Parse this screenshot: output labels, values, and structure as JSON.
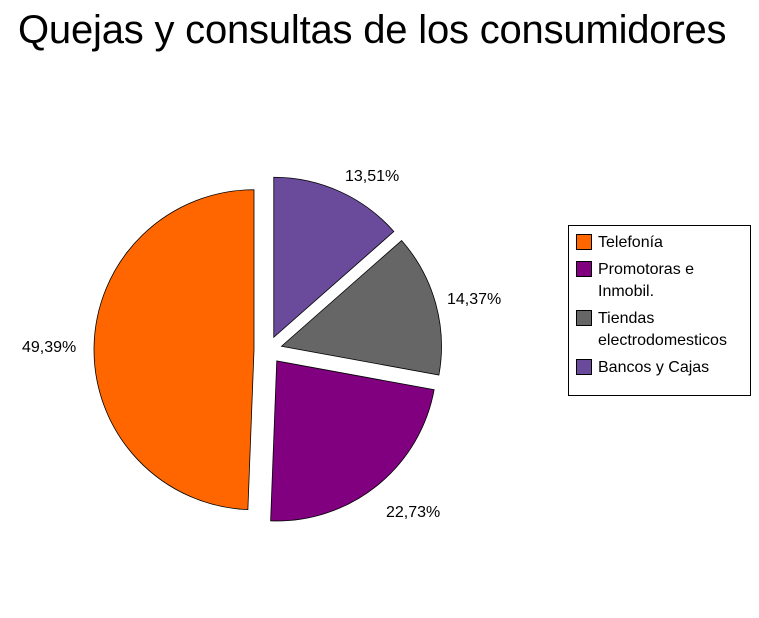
{
  "chart_data": {
    "type": "pie",
    "title": "Quejas y consultas de los consumidores",
    "categories": [
      "Telefonía",
      "Promotoras e Inmobil.",
      "Tiendas electrodomesticos",
      "Bancos y Cajas"
    ],
    "values": [
      49.39,
      22.73,
      14.37,
      13.51
    ],
    "value_labels": [
      "49,39%",
      "22,73%",
      "14,37%",
      "13,51%"
    ],
    "colors": [
      "#ff6600",
      "#800080",
      "#666666",
      "#6a4a9a"
    ],
    "legend_position": "right",
    "exploded": true
  },
  "legend": {
    "items": [
      {
        "label": "Telefonía",
        "color": "#ff6600"
      },
      {
        "label": "Promotoras e\nInmobil.",
        "color": "#800080"
      },
      {
        "label": "Tiendas\nelectrodomesticos",
        "color": "#666666"
      },
      {
        "label": "Bancos y Cajas",
        "color": "#6a4a9a"
      }
    ]
  }
}
